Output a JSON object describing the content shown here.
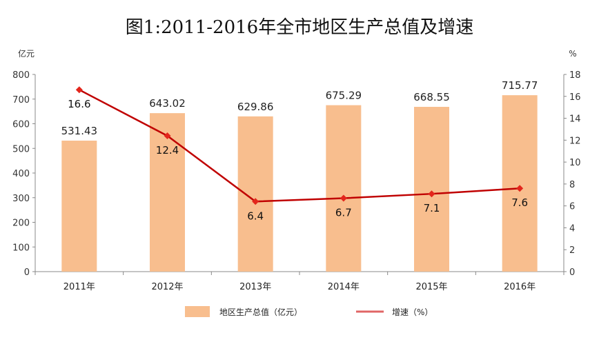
{
  "chart_data": {
    "type": "bar+line",
    "title": "图1:2011-2016年全市地区生产总值及增速",
    "categories": [
      "2011年",
      "2012年",
      "2013年",
      "2014年",
      "2015年",
      "2016年"
    ],
    "series": [
      {
        "name": "地区生产总值（亿元）",
        "type": "bar",
        "axis": "left",
        "values": [
          531.43,
          643.02,
          629.86,
          675.29,
          668.55,
          715.77
        ],
        "labels": [
          "531.43",
          "643.02",
          "629.86",
          "675.29",
          "668.55",
          "715.77"
        ],
        "color": "#F8BE8E"
      },
      {
        "name": "增速（%）",
        "type": "line",
        "axis": "right",
        "values": [
          16.6,
          12.4,
          6.4,
          6.7,
          7.1,
          7.6
        ],
        "labels": [
          "16.6",
          "12.4",
          "6.4",
          "6.7",
          "7.1",
          "7.6"
        ],
        "color": "#C00000"
      }
    ],
    "left_axis": {
      "unit": "亿元",
      "ylim": [
        0,
        800
      ],
      "ticks": [
        0,
        100,
        200,
        300,
        400,
        500,
        600,
        700,
        800
      ],
      "tick_labels": [
        "0",
        "100",
        "200",
        "300",
        "400",
        "500",
        "600",
        "700",
        "800"
      ]
    },
    "right_axis": {
      "unit": "%",
      "ylim": [
        0,
        18
      ],
      "ticks": [
        0,
        2,
        4,
        6,
        8,
        10,
        12,
        14,
        16,
        18
      ],
      "tick_labels": [
        "0",
        "2",
        "4",
        "6",
        "8",
        "10",
        "12",
        "14",
        "16",
        "18"
      ]
    },
    "grid": false,
    "legend": {
      "position": "bottom",
      "items": [
        "地区生产总值（亿元）",
        "增速（%）"
      ]
    }
  }
}
